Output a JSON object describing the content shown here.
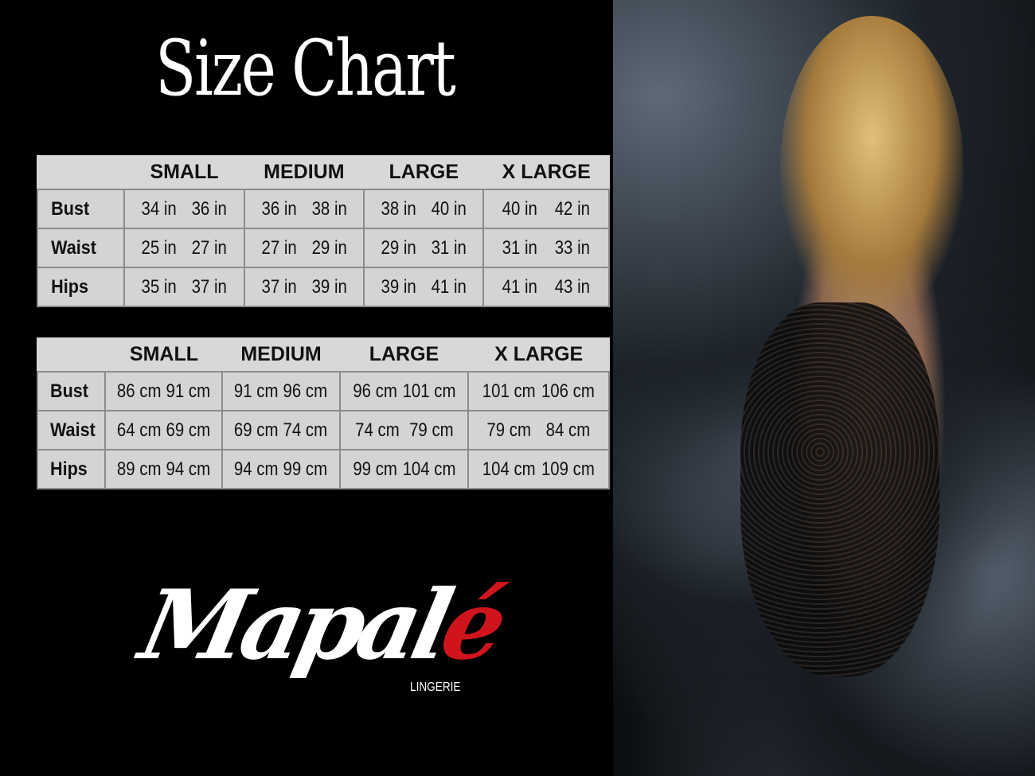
{
  "title": "Size Chart",
  "brand": {
    "name_main": "Mapal",
    "name_accent": "é",
    "subtitle": "LINGERIE",
    "accent_color": "#d0141c"
  },
  "sizes": [
    "SMALL",
    "MEDIUM",
    "LARGE",
    "X LARGE"
  ],
  "inches_table": {
    "rows": [
      {
        "label": "Bust",
        "values": [
          [
            "34 in",
            "36 in"
          ],
          [
            "36 in",
            "38 in"
          ],
          [
            "38 in",
            "40 in"
          ],
          [
            "40 in",
            "42 in"
          ]
        ]
      },
      {
        "label": "Waist",
        "values": [
          [
            "25 in",
            "27 in"
          ],
          [
            "27 in",
            "29 in"
          ],
          [
            "29 in",
            "31 in"
          ],
          [
            "31 in",
            "33 in"
          ]
        ]
      },
      {
        "label": "Hips",
        "values": [
          [
            "35 in",
            "37 in"
          ],
          [
            "37 in",
            "39 in"
          ],
          [
            "39 in",
            "41 in"
          ],
          [
            "41 in",
            "43 in"
          ]
        ]
      }
    ]
  },
  "cm_table": {
    "rows": [
      {
        "label": "Bust",
        "values": [
          [
            "86 cm",
            "91 cm"
          ],
          [
            "91 cm",
            "96 cm"
          ],
          [
            "96 cm",
            "101 cm"
          ],
          [
            "101 cm",
            "106 cm"
          ]
        ]
      },
      {
        "label": "Waist",
        "values": [
          [
            "64 cm",
            "69 cm"
          ],
          [
            "69 cm",
            "74 cm"
          ],
          [
            "74 cm",
            "79 cm"
          ],
          [
            "79 cm",
            "84 cm"
          ]
        ]
      },
      {
        "label": "Hips",
        "values": [
          [
            "89 cm",
            "94 cm"
          ],
          [
            "94 cm",
            "99 cm"
          ],
          [
            "99 cm",
            "104 cm"
          ],
          [
            "104 cm",
            "109 cm"
          ]
        ]
      }
    ]
  }
}
